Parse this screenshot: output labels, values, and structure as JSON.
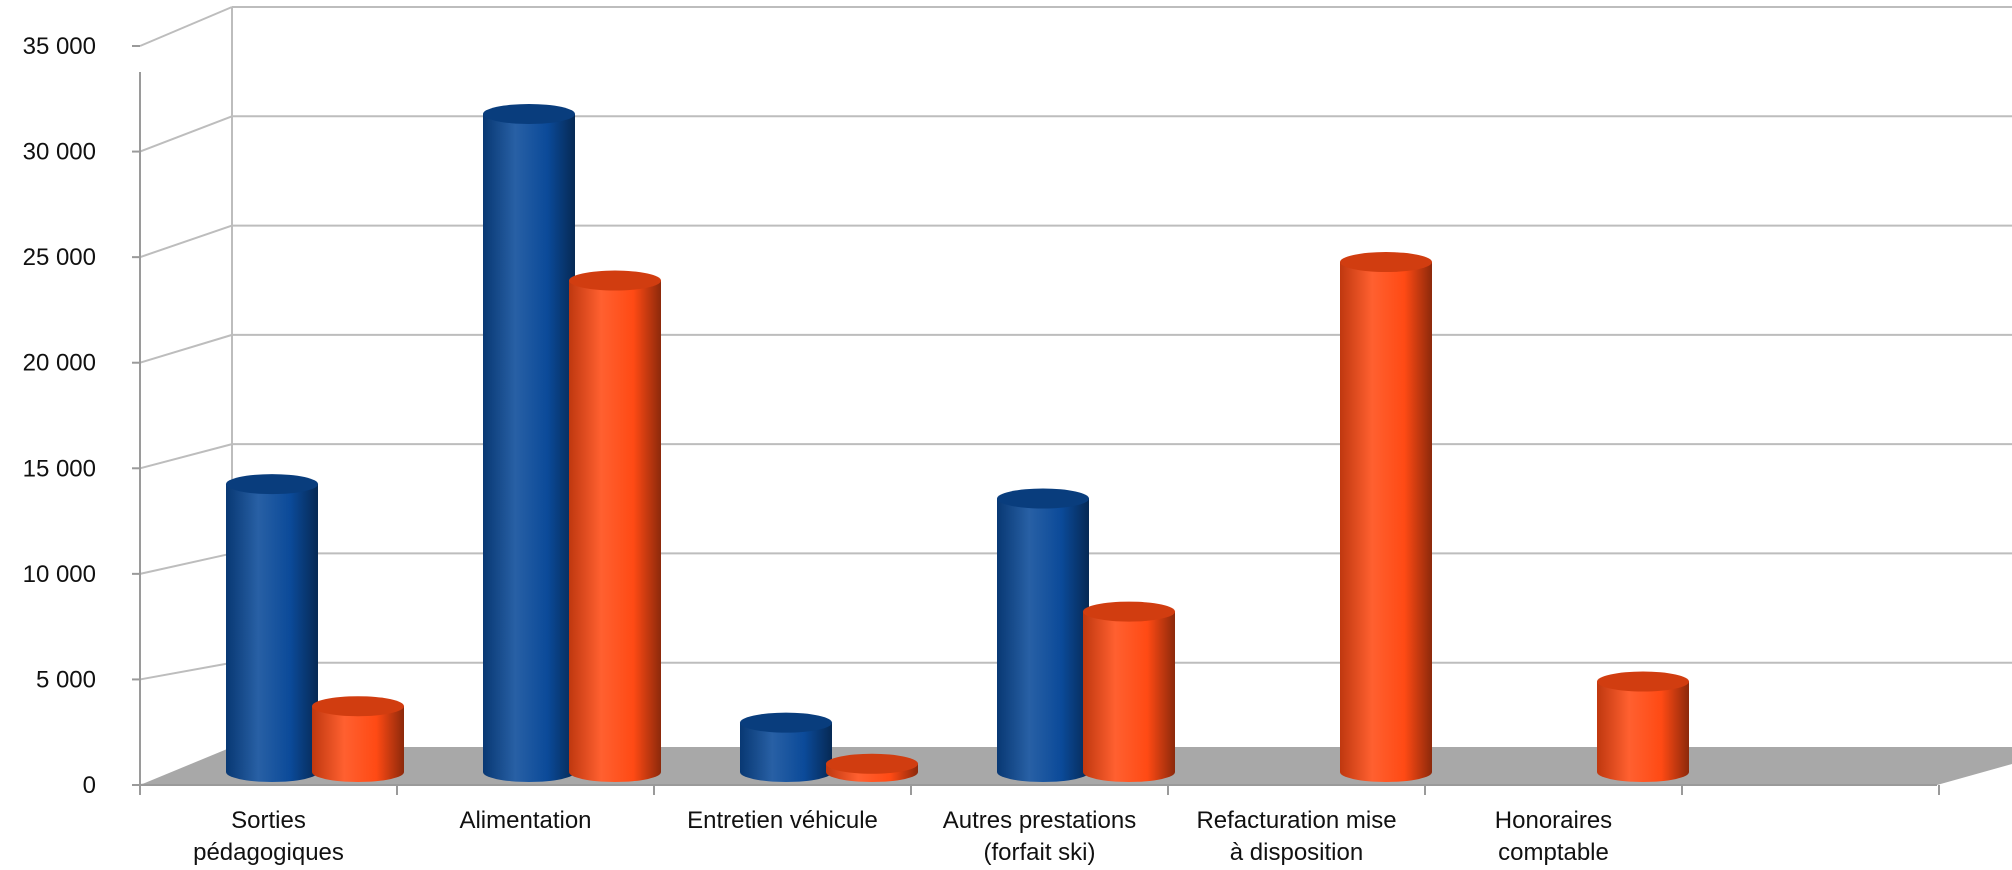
{
  "chart_data": {
    "type": "bar",
    "title": "",
    "xlabel": "",
    "ylabel": "",
    "ylim": [
      0,
      35000
    ],
    "yticks": [
      0,
      5000,
      10000,
      15000,
      20000,
      25000,
      30000,
      35000
    ],
    "ytick_labels": [
      "0",
      "5 000",
      "10 000",
      "15 000",
      "20 000",
      "25 000",
      "30 000",
      "35 000"
    ],
    "grid": true,
    "legend": "none",
    "style": "3d-cylinder",
    "categories": [
      [
        "Sorties",
        "pédagogiques"
      ],
      [
        "Alimentation"
      ],
      [
        "Entretien véhicule"
      ],
      [
        "Autres prestations",
        "(forfait ski)"
      ],
      [
        "Refacturation mise",
        "à disposition"
      ],
      [
        "Honoraires",
        "comptable"
      ]
    ],
    "series": [
      {
        "color": "#0B4A99",
        "values": [
          14000,
          32000,
          2400,
          13300,
          0,
          0
        ]
      },
      {
        "color": "#FF4A14",
        "values": [
          3200,
          23900,
          400,
          7800,
          24800,
          4400
        ]
      }
    ],
    "colors": {
      "grid": "#BDBDBD",
      "floor": "#A8A8A8",
      "axis": "#9A9A9A"
    }
  }
}
